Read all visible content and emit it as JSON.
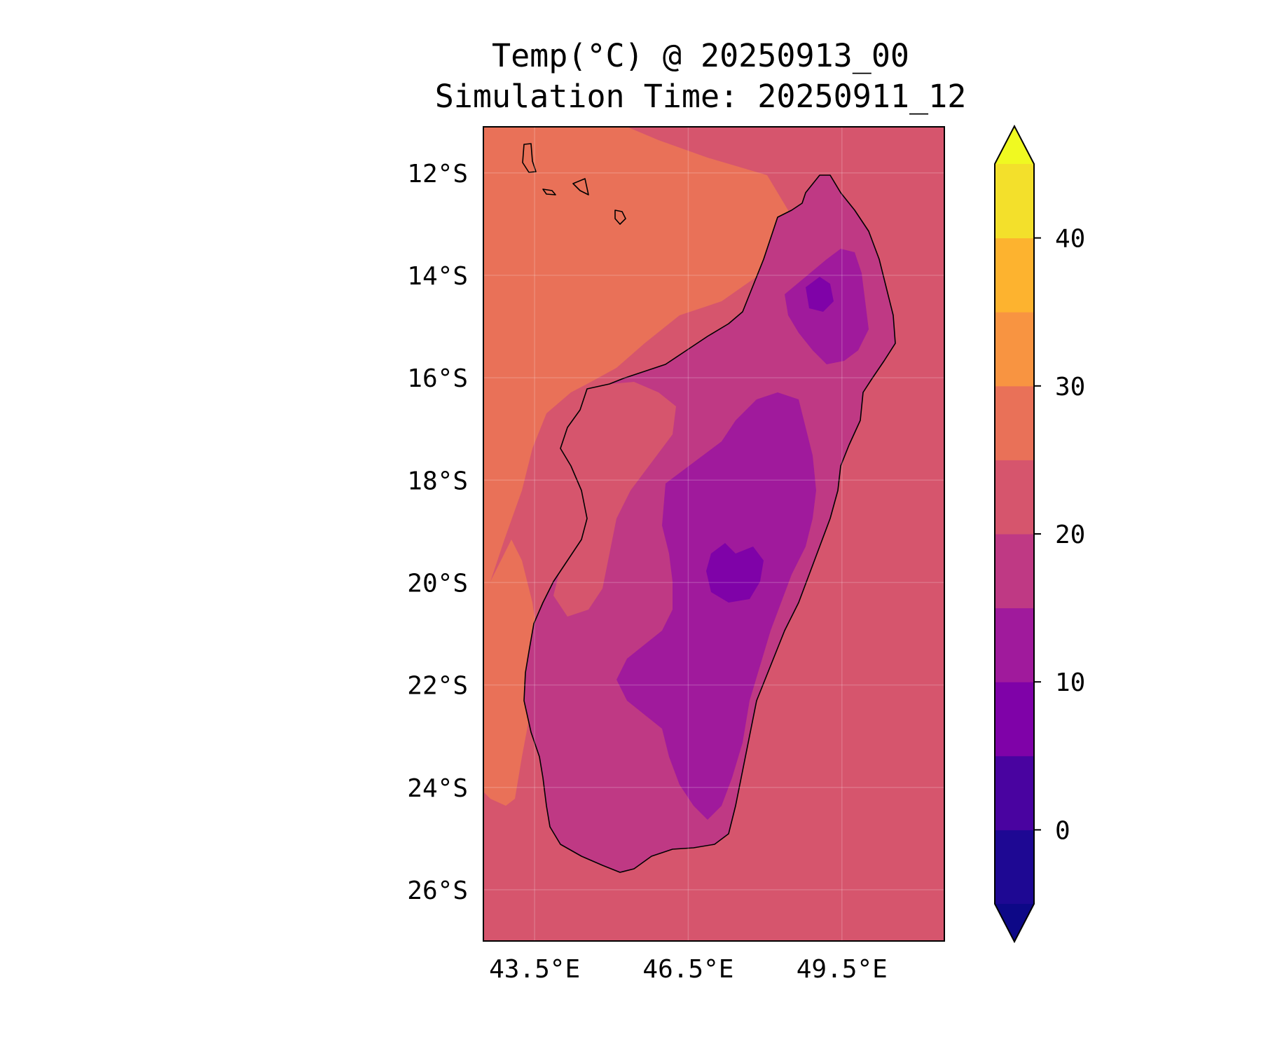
{
  "title": {
    "line1": "Temp(°C) @ 20250913_00",
    "line2": "Simulation Time: 20250911_12"
  },
  "map": {
    "extent": {
      "lon_min": 42.5,
      "lon_max": 51.5,
      "lat_min": -27.0,
      "lat_max": -11.1
    },
    "x_ticks": [
      {
        "value": 43.5,
        "label": "43.5°E"
      },
      {
        "value": 46.5,
        "label": "46.5°E"
      },
      {
        "value": 49.5,
        "label": "49.5°E"
      }
    ],
    "y_ticks": [
      {
        "value": -12,
        "label": "12°S"
      },
      {
        "value": -14,
        "label": "14°S"
      },
      {
        "value": -16,
        "label": "16°S"
      },
      {
        "value": -18,
        "label": "18°S"
      },
      {
        "value": -20,
        "label": "20°S"
      },
      {
        "value": -22,
        "label": "22°S"
      },
      {
        "value": -24,
        "label": "24°S"
      },
      {
        "value": -26,
        "label": "26°S"
      }
    ],
    "grid": true,
    "region": "Madagascar"
  },
  "colorbar": {
    "variable": "Temp",
    "unit": "°C",
    "extend": "both",
    "levels": [
      -5,
      0,
      5,
      10,
      15,
      20,
      25,
      30,
      35,
      40,
      45
    ],
    "ticks": [
      {
        "value": 0,
        "label": "0"
      },
      {
        "value": 10,
        "label": "10"
      },
      {
        "value": 20,
        "label": "20"
      },
      {
        "value": 30,
        "label": "30"
      },
      {
        "value": 40,
        "label": "40"
      }
    ],
    "colors": [
      "#1e0893",
      "#4903a0",
      "#7f02a8",
      "#a01a9c",
      "#bf3984",
      "#d6556d",
      "#e97158",
      "#f89441",
      "#fdb32f",
      "#f3e02b"
    ],
    "under_color": "#0d0887",
    "over_color": "#f0f921"
  }
}
